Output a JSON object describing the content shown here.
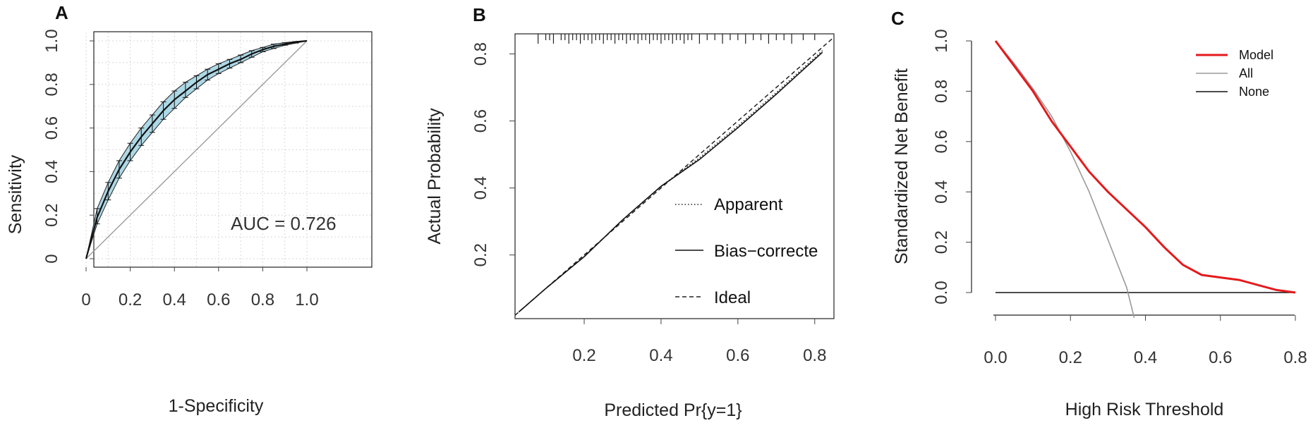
{
  "panels": [
    "A",
    "B",
    "C"
  ],
  "chart_data": [
    {
      "panel": "A",
      "type": "line",
      "xlabel": "1-Specificity",
      "ylabel": "Sensitivity",
      "xlim": [
        0,
        1
      ],
      "ylim": [
        0,
        1
      ],
      "xticks": [
        "0",
        "0.2",
        "0.4",
        "0.6",
        "0.8",
        "1.0"
      ],
      "yticks": [
        "0",
        "0.2",
        "0.4",
        "0.6",
        "0.8",
        "1.0"
      ],
      "grid": true,
      "annotation": "AUC = 0.726",
      "series": [
        {
          "kind": "roc",
          "x": [
            0,
            0.05,
            0.1,
            0.15,
            0.2,
            0.25,
            0.3,
            0.35,
            0.4,
            0.45,
            0.5,
            0.55,
            0.6,
            0.65,
            0.7,
            0.75,
            0.8,
            0.85,
            0.9,
            0.95,
            1.0
          ],
          "y": [
            0,
            0.19,
            0.31,
            0.41,
            0.49,
            0.56,
            0.62,
            0.68,
            0.73,
            0.77,
            0.81,
            0.845,
            0.87,
            0.895,
            0.915,
            0.94,
            0.96,
            0.975,
            0.985,
            0.995,
            1.0
          ],
          "ci_lower": [
            0,
            0.16,
            0.27,
            0.37,
            0.45,
            0.52,
            0.58,
            0.64,
            0.69,
            0.74,
            0.78,
            0.82,
            0.85,
            0.875,
            0.9,
            0.925,
            0.95,
            0.965,
            0.98,
            0.99,
            1.0
          ],
          "ci_upper": [
            0,
            0.23,
            0.35,
            0.45,
            0.53,
            0.6,
            0.66,
            0.72,
            0.77,
            0.81,
            0.84,
            0.87,
            0.895,
            0.915,
            0.935,
            0.955,
            0.97,
            0.985,
            0.992,
            0.997,
            1.0
          ]
        },
        {
          "kind": "reference",
          "x": [
            0,
            1
          ],
          "y": [
            0,
            1
          ]
        }
      ]
    },
    {
      "panel": "B",
      "type": "line",
      "xlabel": "Predicted Pr{y=1}",
      "ylabel": "Actual Probability",
      "xlim": [
        0.02,
        0.85
      ],
      "ylim": [
        0.01,
        0.86
      ],
      "xticks": [
        0.2,
        0.4,
        0.6,
        0.8
      ],
      "yticks": [
        0.2,
        0.4,
        0.6,
        0.8
      ],
      "legend": [
        "Apparent",
        "Bias−correcte",
        "Ideal"
      ],
      "series": [
        {
          "name": "Apparent",
          "style": "dotted",
          "x": [
            0.03,
            0.1,
            0.2,
            0.3,
            0.4,
            0.5,
            0.6,
            0.7,
            0.82
          ],
          "y": [
            0.03,
            0.1,
            0.195,
            0.305,
            0.405,
            0.49,
            0.585,
            0.685,
            0.81
          ]
        },
        {
          "name": "Bias−correcte",
          "style": "solid",
          "x": [
            0.03,
            0.1,
            0.2,
            0.3,
            0.4,
            0.5,
            0.6,
            0.7,
            0.82
          ],
          "y": [
            0.03,
            0.1,
            0.195,
            0.305,
            0.405,
            0.485,
            0.58,
            0.68,
            0.805
          ]
        },
        {
          "name": "Ideal",
          "style": "dashed",
          "x": [
            0.02,
            0.85
          ],
          "y": [
            0.02,
            0.85
          ]
        }
      ],
      "rug": [
        0.08,
        0.1,
        0.11,
        0.12,
        0.14,
        0.15,
        0.16,
        0.17,
        0.18,
        0.19,
        0.2,
        0.21,
        0.22,
        0.23,
        0.24,
        0.25,
        0.26,
        0.27,
        0.28,
        0.29,
        0.3,
        0.31,
        0.32,
        0.33,
        0.34,
        0.35,
        0.36,
        0.37,
        0.38,
        0.39,
        0.4,
        0.41,
        0.42,
        0.43,
        0.44,
        0.45,
        0.46,
        0.47,
        0.48,
        0.5,
        0.52,
        0.54,
        0.56,
        0.58,
        0.6,
        0.62,
        0.64,
        0.66,
        0.68,
        0.7,
        0.72,
        0.74,
        0.77,
        0.8
      ]
    },
    {
      "panel": "C",
      "type": "line",
      "xlabel": "High Risk Threshold",
      "ylabel": "Standardized Net Benefit",
      "xlim": [
        0,
        0.8
      ],
      "ylim": [
        0,
        1
      ],
      "xticks": [
        "0.0",
        "0.2",
        "0.4",
        "0.6",
        "0.8"
      ],
      "yticks": [
        "0.0",
        "0.2",
        "0.4",
        "0.6",
        "0.8",
        "1.0"
      ],
      "legend": [
        "Model",
        "All",
        "None"
      ],
      "series": [
        {
          "name": "Model",
          "color": "#e41a1c",
          "x": [
            0,
            0.05,
            0.1,
            0.15,
            0.2,
            0.25,
            0.3,
            0.35,
            0.4,
            0.45,
            0.5,
            0.55,
            0.6,
            0.65,
            0.7,
            0.75,
            0.8
          ],
          "y": [
            1.0,
            0.9,
            0.8,
            0.68,
            0.58,
            0.48,
            0.4,
            0.33,
            0.26,
            0.18,
            0.11,
            0.07,
            0.06,
            0.05,
            0.03,
            0.01,
            0.0
          ]
        },
        {
          "name": "All",
          "color": "#9a9a9a",
          "x": [
            0,
            0.05,
            0.1,
            0.15,
            0.2,
            0.25,
            0.3,
            0.35,
            0.37
          ],
          "y": [
            1.0,
            0.91,
            0.81,
            0.7,
            0.56,
            0.4,
            0.21,
            0.02,
            -0.1
          ]
        },
        {
          "name": "None",
          "color": "#000000",
          "x": [
            0,
            0.8
          ],
          "y": [
            0,
            0
          ]
        }
      ]
    }
  ]
}
